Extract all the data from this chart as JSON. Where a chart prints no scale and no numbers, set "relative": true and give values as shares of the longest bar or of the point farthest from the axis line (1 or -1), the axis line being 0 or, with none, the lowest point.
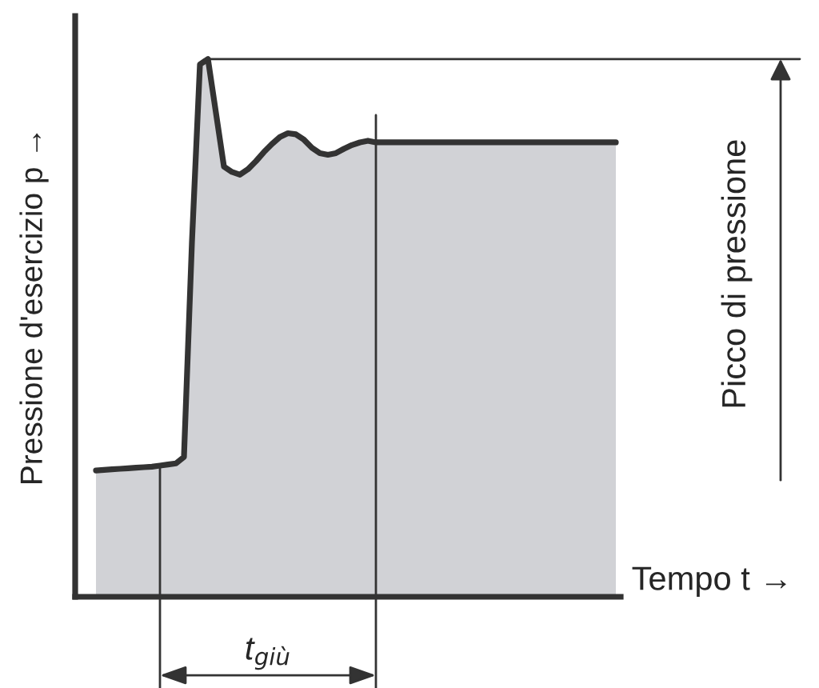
{
  "chart_data": {
    "type": "area",
    "relative": true,
    "xlabel": "Tempo t →",
    "ylabel": "Pressione d'esercizio p →",
    "annotations": [
      "Picco di pressione",
      "t$_{giù}$"
    ],
    "categories": [
      null,
      null,
      null,
      null,
      null,
      null,
      null,
      null,
      null,
      null,
      null,
      null,
      null,
      null,
      null,
      null,
      null,
      null,
      null,
      null,
      null,
      null,
      null,
      null,
      null,
      null,
      null,
      null,
      null,
      null,
      null,
      null,
      null,
      null,
      null,
      null,
      null,
      null,
      null,
      null,
      null,
      null,
      null,
      null,
      null,
      null,
      null,
      null,
      null,
      null,
      null,
      null,
      null,
      null,
      null,
      null,
      null,
      null,
      null,
      null,
      null,
      null,
      null,
      null,
      null,
      null
    ],
    "series": [
      {
        "color": "#d1d2d6",
        "values": [
          0.235,
          0.236,
          0.237,
          0.238,
          0.239,
          0.24,
          0.241,
          0.242,
          0.244,
          0.246,
          0.248,
          0.26,
          0.66,
          0.99,
          1.0,
          0.9,
          0.8,
          0.79,
          0.785,
          0.795,
          0.81,
          0.827,
          0.842,
          0.855,
          0.862,
          0.86,
          0.85,
          0.835,
          0.825,
          0.822,
          0.825,
          0.833,
          0.84,
          0.845,
          0.848,
          0.845,
          0.845,
          0.845,
          0.845,
          0.845,
          0.845,
          0.845,
          0.845,
          0.845,
          0.845,
          0.845,
          0.845,
          0.845,
          0.845,
          0.845,
          0.845,
          0.845,
          0.845,
          0.845,
          0.845,
          0.845,
          0.845,
          0.845,
          0.845,
          0.845,
          0.845,
          0.845,
          0.845,
          0.845,
          0.845,
          0.845
        ]
      }
    ],
    "line_style": "solid"
  }
}
